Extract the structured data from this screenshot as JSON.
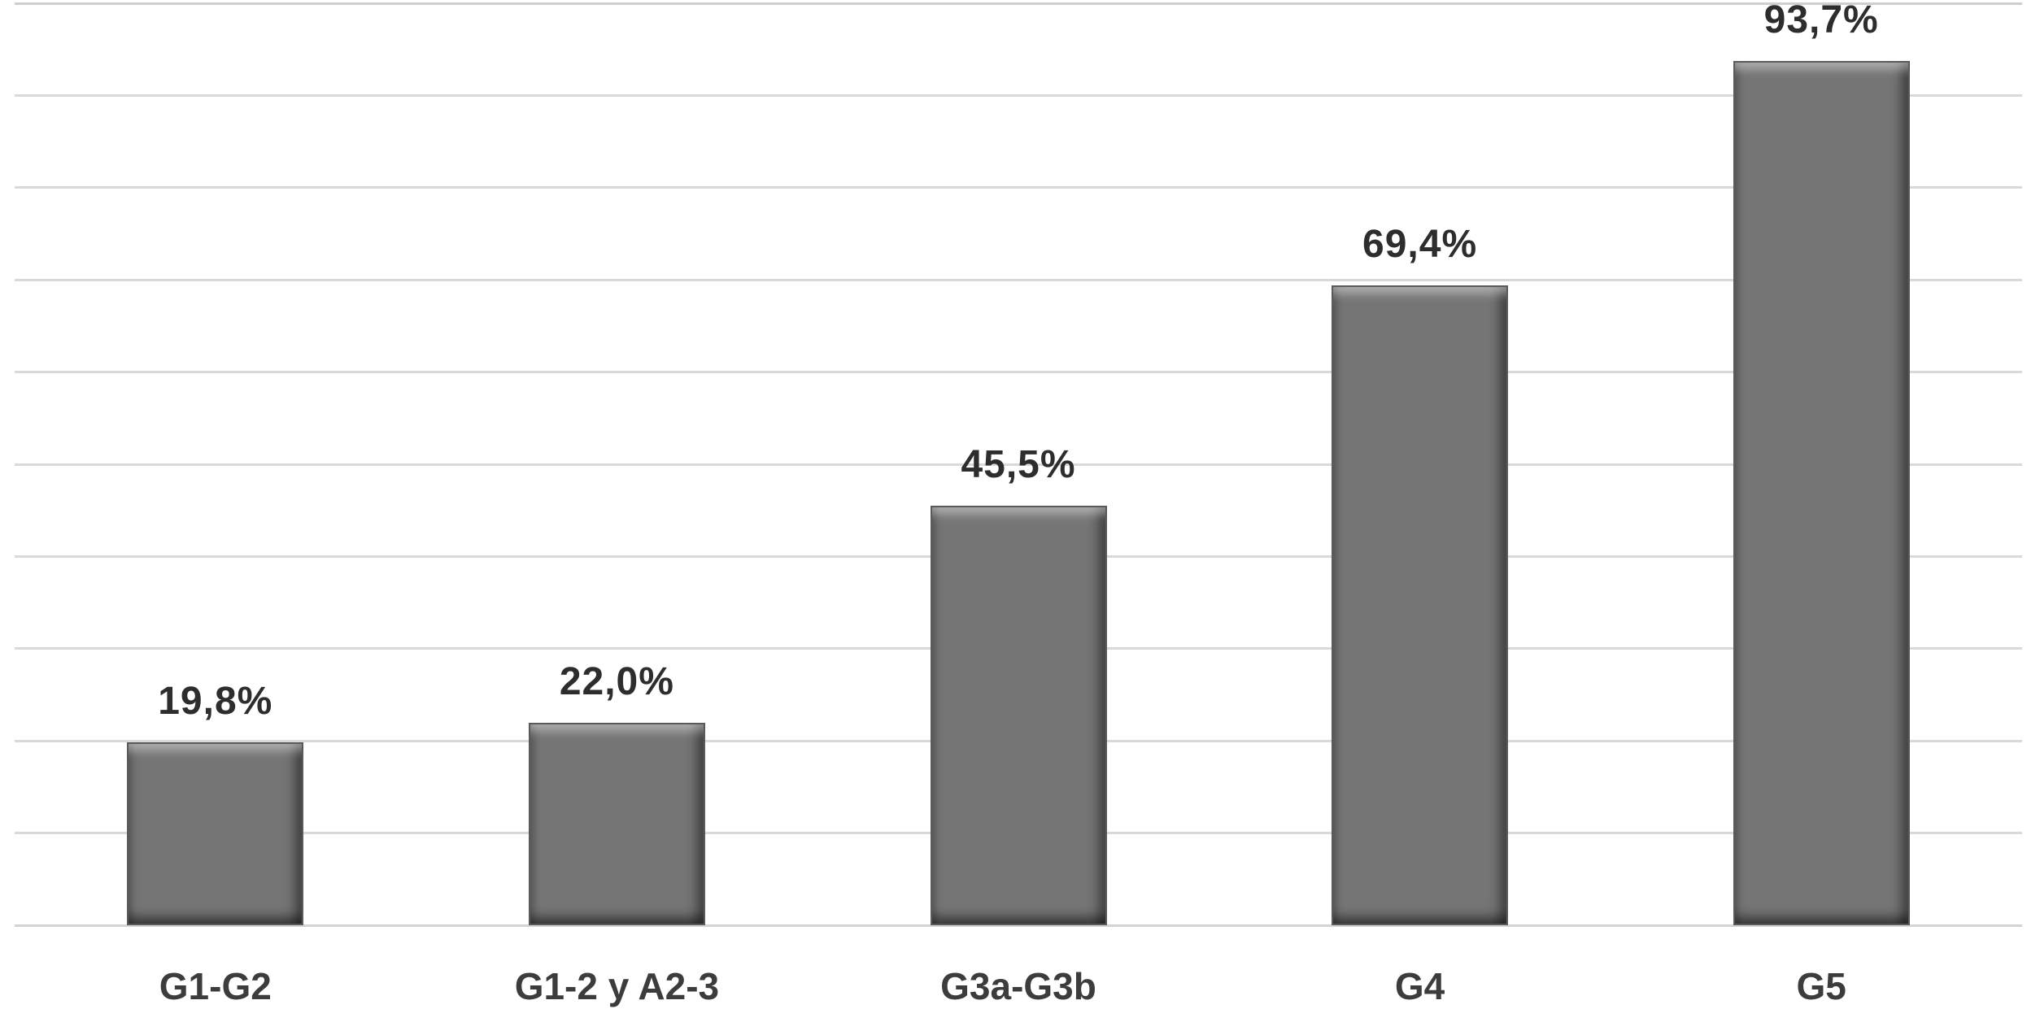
{
  "chart_data": {
    "type": "bar",
    "title": "",
    "xlabel": "",
    "ylabel": "",
    "categories": [
      "G1-G2",
      "G1-2 y A2-3",
      "G3a-G3b",
      "G4",
      "G5"
    ],
    "values": [
      19.8,
      22.0,
      45.5,
      69.4,
      93.7
    ],
    "value_labels": [
      "19,8%",
      "22,0%",
      "45,5%",
      "69,4%",
      "93,7%"
    ],
    "ylim": [
      0,
      100
    ],
    "gridlines": {
      "horizontal": true,
      "interval_percent": 10,
      "vertical": false
    },
    "legend_position": "none",
    "y_axis_tick_labels_visible": false,
    "colors": {
      "bar_fill": "#757575",
      "bar_edge_dark": "#3e3e3e",
      "bar_edge_light": "#9a9a9a",
      "gridline": "#d9d9d9",
      "axis_line": "#d4d4d4",
      "value_label_text": "#2d2d2d",
      "category_label_text": "#3c3c3c",
      "background": "#ffffff"
    }
  }
}
